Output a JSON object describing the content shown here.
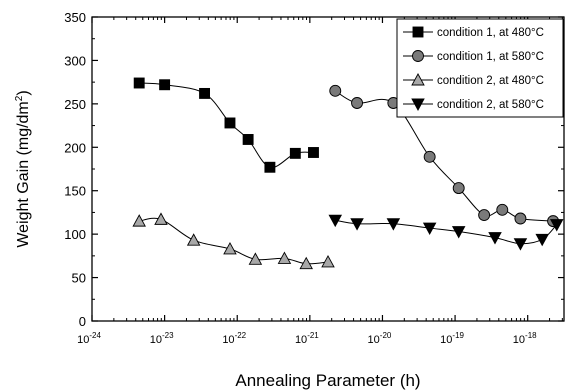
{
  "chart_data": {
    "type": "scatter",
    "xlabel": "Annealing Parameter (h)",
    "ylabel": "Weight Gain (mg/dm",
    "ylabel_sup": "2",
    "ylabel_close": ")",
    "xscale": "log",
    "xlim_exp": [
      -24,
      -17.5
    ],
    "ylim": [
      0,
      350
    ],
    "yticks": [
      0,
      50,
      100,
      150,
      200,
      250,
      300,
      350
    ],
    "xticks_exp": [
      -24,
      -23,
      -22,
      -21,
      -20,
      -19,
      -18
    ],
    "xtick_base": "10",
    "grid": false,
    "legend_position": "top-right",
    "series": [
      {
        "name": "condition 1, at 480°C",
        "marker": "square",
        "fill": "#000000",
        "points": [
          [
            -23.35,
            274
          ],
          [
            -23.0,
            272
          ],
          [
            -22.45,
            262
          ],
          [
            -22.1,
            228
          ],
          [
            -21.85,
            209
          ],
          [
            -21.55,
            177
          ],
          [
            -21.2,
            193
          ],
          [
            -20.95,
            194
          ]
        ]
      },
      {
        "name": "condition 1, at 580°C",
        "marker": "circle",
        "fill": "#7a7a7a",
        "points": [
          [
            -20.65,
            265
          ],
          [
            -20.35,
            251
          ],
          [
            -19.85,
            251
          ],
          [
            -19.35,
            189
          ],
          [
            -18.95,
            153
          ],
          [
            -18.6,
            122
          ],
          [
            -18.35,
            128
          ],
          [
            -18.1,
            118
          ],
          [
            -17.65,
            115
          ]
        ]
      },
      {
        "name": "condition 2, at 480°C",
        "marker": "triangle-up",
        "fill": "#a8a8a8",
        "points": [
          [
            -23.35,
            115
          ],
          [
            -23.05,
            117
          ],
          [
            -22.6,
            93
          ],
          [
            -22.1,
            83
          ],
          [
            -21.75,
            71
          ],
          [
            -21.35,
            72
          ],
          [
            -21.05,
            66
          ],
          [
            -20.75,
            68
          ]
        ]
      },
      {
        "name": "condition 2, at 580°C",
        "marker": "triangle-down",
        "fill": "#000000",
        "points": [
          [
            -20.65,
            116
          ],
          [
            -20.35,
            112
          ],
          [
            -19.85,
            112
          ],
          [
            -19.35,
            107
          ],
          [
            -18.95,
            103
          ],
          [
            -18.45,
            96
          ],
          [
            -18.1,
            89
          ],
          [
            -17.8,
            94
          ],
          [
            -17.6,
            111
          ]
        ]
      }
    ]
  }
}
